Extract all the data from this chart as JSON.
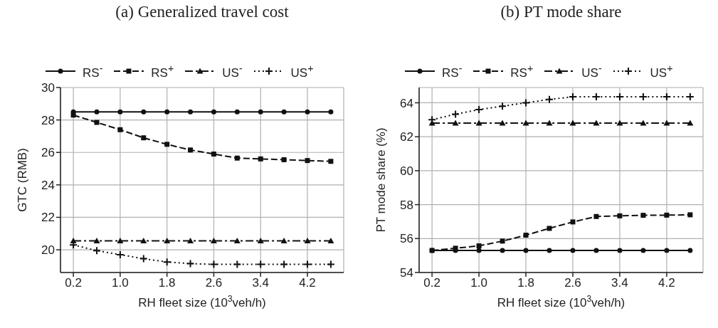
{
  "chart_data": [
    {
      "type": "line",
      "title": "(a) Generalized travel cost",
      "xlabel": "RH fleet size (10$^{3}$veh/h)",
      "ylabel": "GTC (RMB)",
      "x": [
        0.2,
        0.6,
        1.0,
        1.4,
        1.8,
        2.2,
        2.6,
        3.0,
        3.4,
        3.8,
        4.2,
        4.6
      ],
      "xlim": [
        -0.02,
        4.82
      ],
      "xticks": [
        0.2,
        {
          "value": 1,
          "label": "1.0"
        },
        1.8,
        2.6,
        3.4,
        4.2
      ],
      "ylim": [
        18.6,
        30
      ],
      "yticks": [
        20,
        22,
        24,
        26,
        28,
        30
      ],
      "grid": true,
      "legend": "top",
      "series": [
        {
          "name": "RS$^{-}$",
          "color": "#111111",
          "marker": "circle",
          "line_style": "solid",
          "values": [
            28.5,
            28.5,
            28.5,
            28.5,
            28.5,
            28.5,
            28.5,
            28.5,
            28.5,
            28.5,
            28.5,
            28.5
          ]
        },
        {
          "name": "RS$^{+}$",
          "color": "#111111",
          "marker": "square",
          "line_style": "dashed",
          "values": [
            28.3,
            27.85,
            27.4,
            26.9,
            26.5,
            26.15,
            25.9,
            25.65,
            25.6,
            25.55,
            25.5,
            25.45
          ]
        },
        {
          "name": "US$^{-}$",
          "color": "#111111",
          "marker": "triangle",
          "line_style": "dashdot",
          "values": [
            20.55,
            20.55,
            20.55,
            20.55,
            20.55,
            20.55,
            20.55,
            20.55,
            20.55,
            20.55,
            20.55,
            20.55
          ]
        },
        {
          "name": "US$^{+}$",
          "color": "#111111",
          "marker": "cross",
          "line_style": "dotted",
          "values": [
            20.3,
            19.95,
            19.7,
            19.45,
            19.25,
            19.15,
            19.1,
            19.1,
            19.1,
            19.1,
            19.1,
            19.1
          ]
        }
      ]
    },
    {
      "type": "line",
      "title": "(b) PT mode share",
      "xlabel": "RH fleet size (10$^{3}$veh/h)",
      "ylabel": "PT mode share (%)",
      "x": [
        0.2,
        0.6,
        1.0,
        1.4,
        1.8,
        2.2,
        2.6,
        3.0,
        3.4,
        3.8,
        4.2,
        4.6
      ],
      "xlim": [
        -0.02,
        4.82
      ],
      "xticks": [
        0.2,
        {
          "value": 1,
          "label": "1.0"
        },
        1.8,
        2.6,
        3.4,
        4.2
      ],
      "ylim": [
        54,
        64.9
      ],
      "yticks": [
        54,
        56,
        58,
        60,
        62,
        64
      ],
      "grid": true,
      "legend": "top",
      "series": [
        {
          "name": "RS$^{-}$",
          "color": "#111111",
          "marker": "circle",
          "line_style": "solid",
          "values": [
            55.3,
            55.3,
            55.3,
            55.3,
            55.3,
            55.3,
            55.3,
            55.3,
            55.3,
            55.3,
            55.3,
            55.3
          ]
        },
        {
          "name": "RS$^{+}$",
          "color": "#111111",
          "marker": "square",
          "line_style": "dashed",
          "values": [
            55.3,
            55.43,
            55.57,
            55.85,
            56.2,
            56.6,
            56.98,
            57.3,
            57.34,
            57.37,
            57.38,
            57.4
          ]
        },
        {
          "name": "US$^{-}$",
          "color": "#111111",
          "marker": "triangle",
          "line_style": "dashdot",
          "values": [
            62.8,
            62.8,
            62.8,
            62.8,
            62.8,
            62.8,
            62.8,
            62.8,
            62.8,
            62.8,
            62.8,
            62.8
          ]
        },
        {
          "name": "US$^{+}$",
          "color": "#111111",
          "marker": "cross",
          "line_style": "dotted",
          "values": [
            63.0,
            63.33,
            63.6,
            63.8,
            64.0,
            64.2,
            64.35,
            64.35,
            64.35,
            64.35,
            64.35,
            64.35
          ]
        }
      ]
    }
  ]
}
